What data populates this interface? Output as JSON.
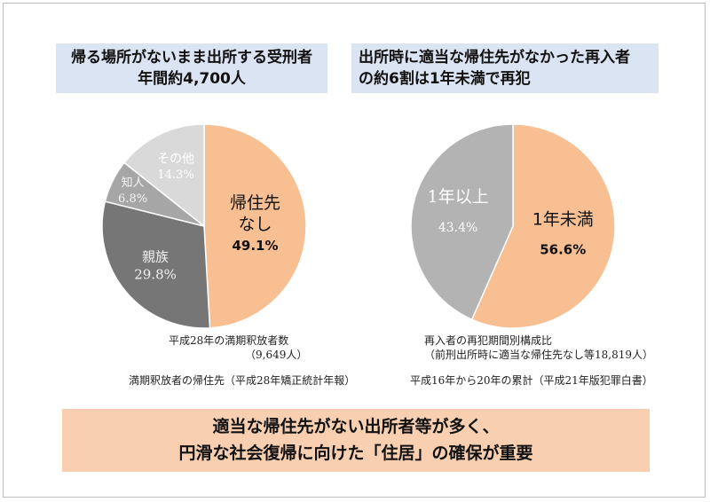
{
  "left_banner": {
    "line1": "帰る場所がないまま出所する受刑者",
    "line2": "年間約4,700人"
  },
  "right_banner": {
    "line1": "出所時に適当な帰住先がなかった再入者",
    "line2": "の約6割は1年未満で再犯"
  },
  "left_notes": {
    "count_label": "平成28年の満期釈放者数",
    "count_value": "（9,649人）",
    "source": "満期釈放者の帰住先（平成28年矯正統計年報）"
  },
  "right_notes": {
    "label1": "再入者の再犯期間別構成比",
    "label2": "（前刑出所時に適当な帰住先なし等18,819人）",
    "source": "平成16年から20年の累計（平成21年版犯罪白書）"
  },
  "conclusion": {
    "line1": "適当な帰住先がない出所者等が多く、",
    "line2": "円滑な社会復帰に向けた「住居」の確保が重要"
  },
  "chart_data": [
    {
      "type": "pie",
      "title": "",
      "slices": [
        {
          "label_lines": [
            "帰住先",
            "なし"
          ],
          "value": 49.1,
          "value_label": "49.1%",
          "color": "#f8bf93"
        },
        {
          "label_lines": [
            "親族"
          ],
          "value": 29.8,
          "value_label": "29.8%",
          "color": "#767676"
        },
        {
          "label_lines": [
            "知人"
          ],
          "value": 6.8,
          "value_label": "6.8%",
          "color": "#a6a6a6"
        },
        {
          "label_lines": [
            "その他"
          ],
          "value": 14.3,
          "value_label": "14.3%",
          "color": "#d9d9d9"
        }
      ]
    },
    {
      "type": "pie",
      "title": "",
      "slices": [
        {
          "label_lines": [
            "1年未満"
          ],
          "value": 56.6,
          "value_label": "56.6%",
          "color": "#f8bf93"
        },
        {
          "label_lines": [
            "1年以上"
          ],
          "value": 43.4,
          "value_label": "43.4%",
          "color": "#b3b3b3"
        }
      ]
    }
  ]
}
